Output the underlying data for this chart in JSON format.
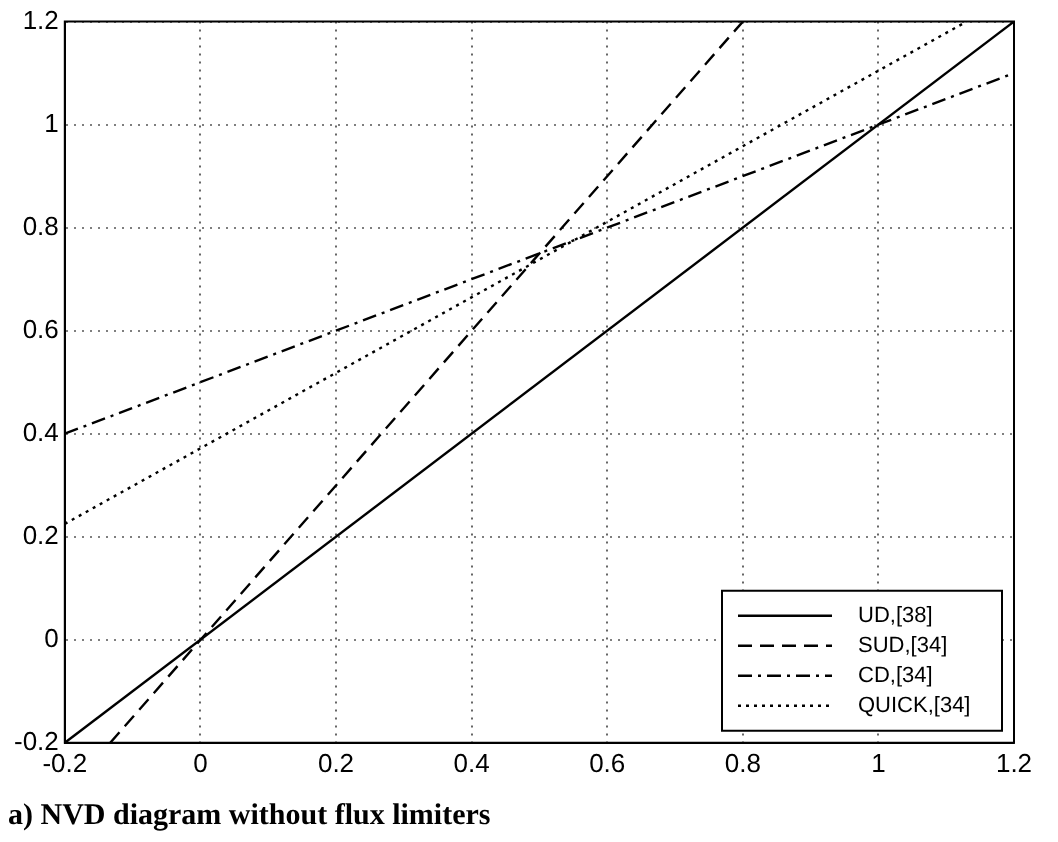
{
  "chart_data": {
    "type": "line",
    "title": "a) NVD diagram without flux limiters",
    "series": [
      {
        "name": "UD,[38]",
        "color": "#000000",
        "line_style": "solid",
        "x": [
          -0.2,
          1.2
        ],
        "values": [
          -0.2,
          1.2
        ]
      },
      {
        "name": "SUD,[34]",
        "color": "#000000",
        "line_style": "dashed",
        "x": [
          -0.133,
          0.8
        ],
        "values": [
          -0.2,
          1.2
        ]
      },
      {
        "name": "CD,[34]",
        "color": "#000000",
        "line_style": "dashdot",
        "x": [
          -0.2,
          1.2
        ],
        "values": [
          0.4,
          1.1
        ]
      },
      {
        "name": "QUICK,[34]",
        "color": "#000000",
        "line_style": "dotted",
        "x": [
          -0.2,
          1.13
        ],
        "values": [
          0.225,
          1.2
        ]
      }
    ],
    "xlim": [
      -0.2,
      1.2
    ],
    "ylim": [
      -0.2,
      1.2
    ],
    "xticks": [
      -0.2,
      0,
      0.2,
      0.4,
      0.6,
      0.8,
      1,
      1.2
    ],
    "yticks": [
      -0.2,
      0,
      0.2,
      0.4,
      0.6,
      0.8,
      1,
      1.2
    ],
    "grid": true,
    "legend": "bottom right",
    "marker": "none"
  }
}
